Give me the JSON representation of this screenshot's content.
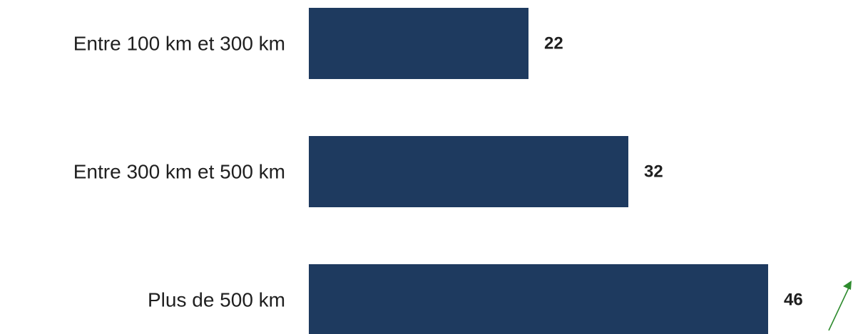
{
  "chart_data": {
    "type": "bar",
    "orientation": "horizontal",
    "categories": [
      "Entre 100 km et 300 km",
      "Entre 300 km et 500 km",
      "Plus de 500 km"
    ],
    "values": [
      22,
      32,
      46
    ],
    "value_labels": [
      "22",
      "32",
      "46"
    ],
    "title": "",
    "xlabel": "",
    "ylabel": "",
    "grid": false,
    "legend": "none",
    "bar_color": "#1e3a5f",
    "label_color": "#1f1f1f"
  },
  "annotation": {
    "arrow_icon": "trend-up-arrow-icon",
    "arrow_color": "#2e8b2e"
  }
}
